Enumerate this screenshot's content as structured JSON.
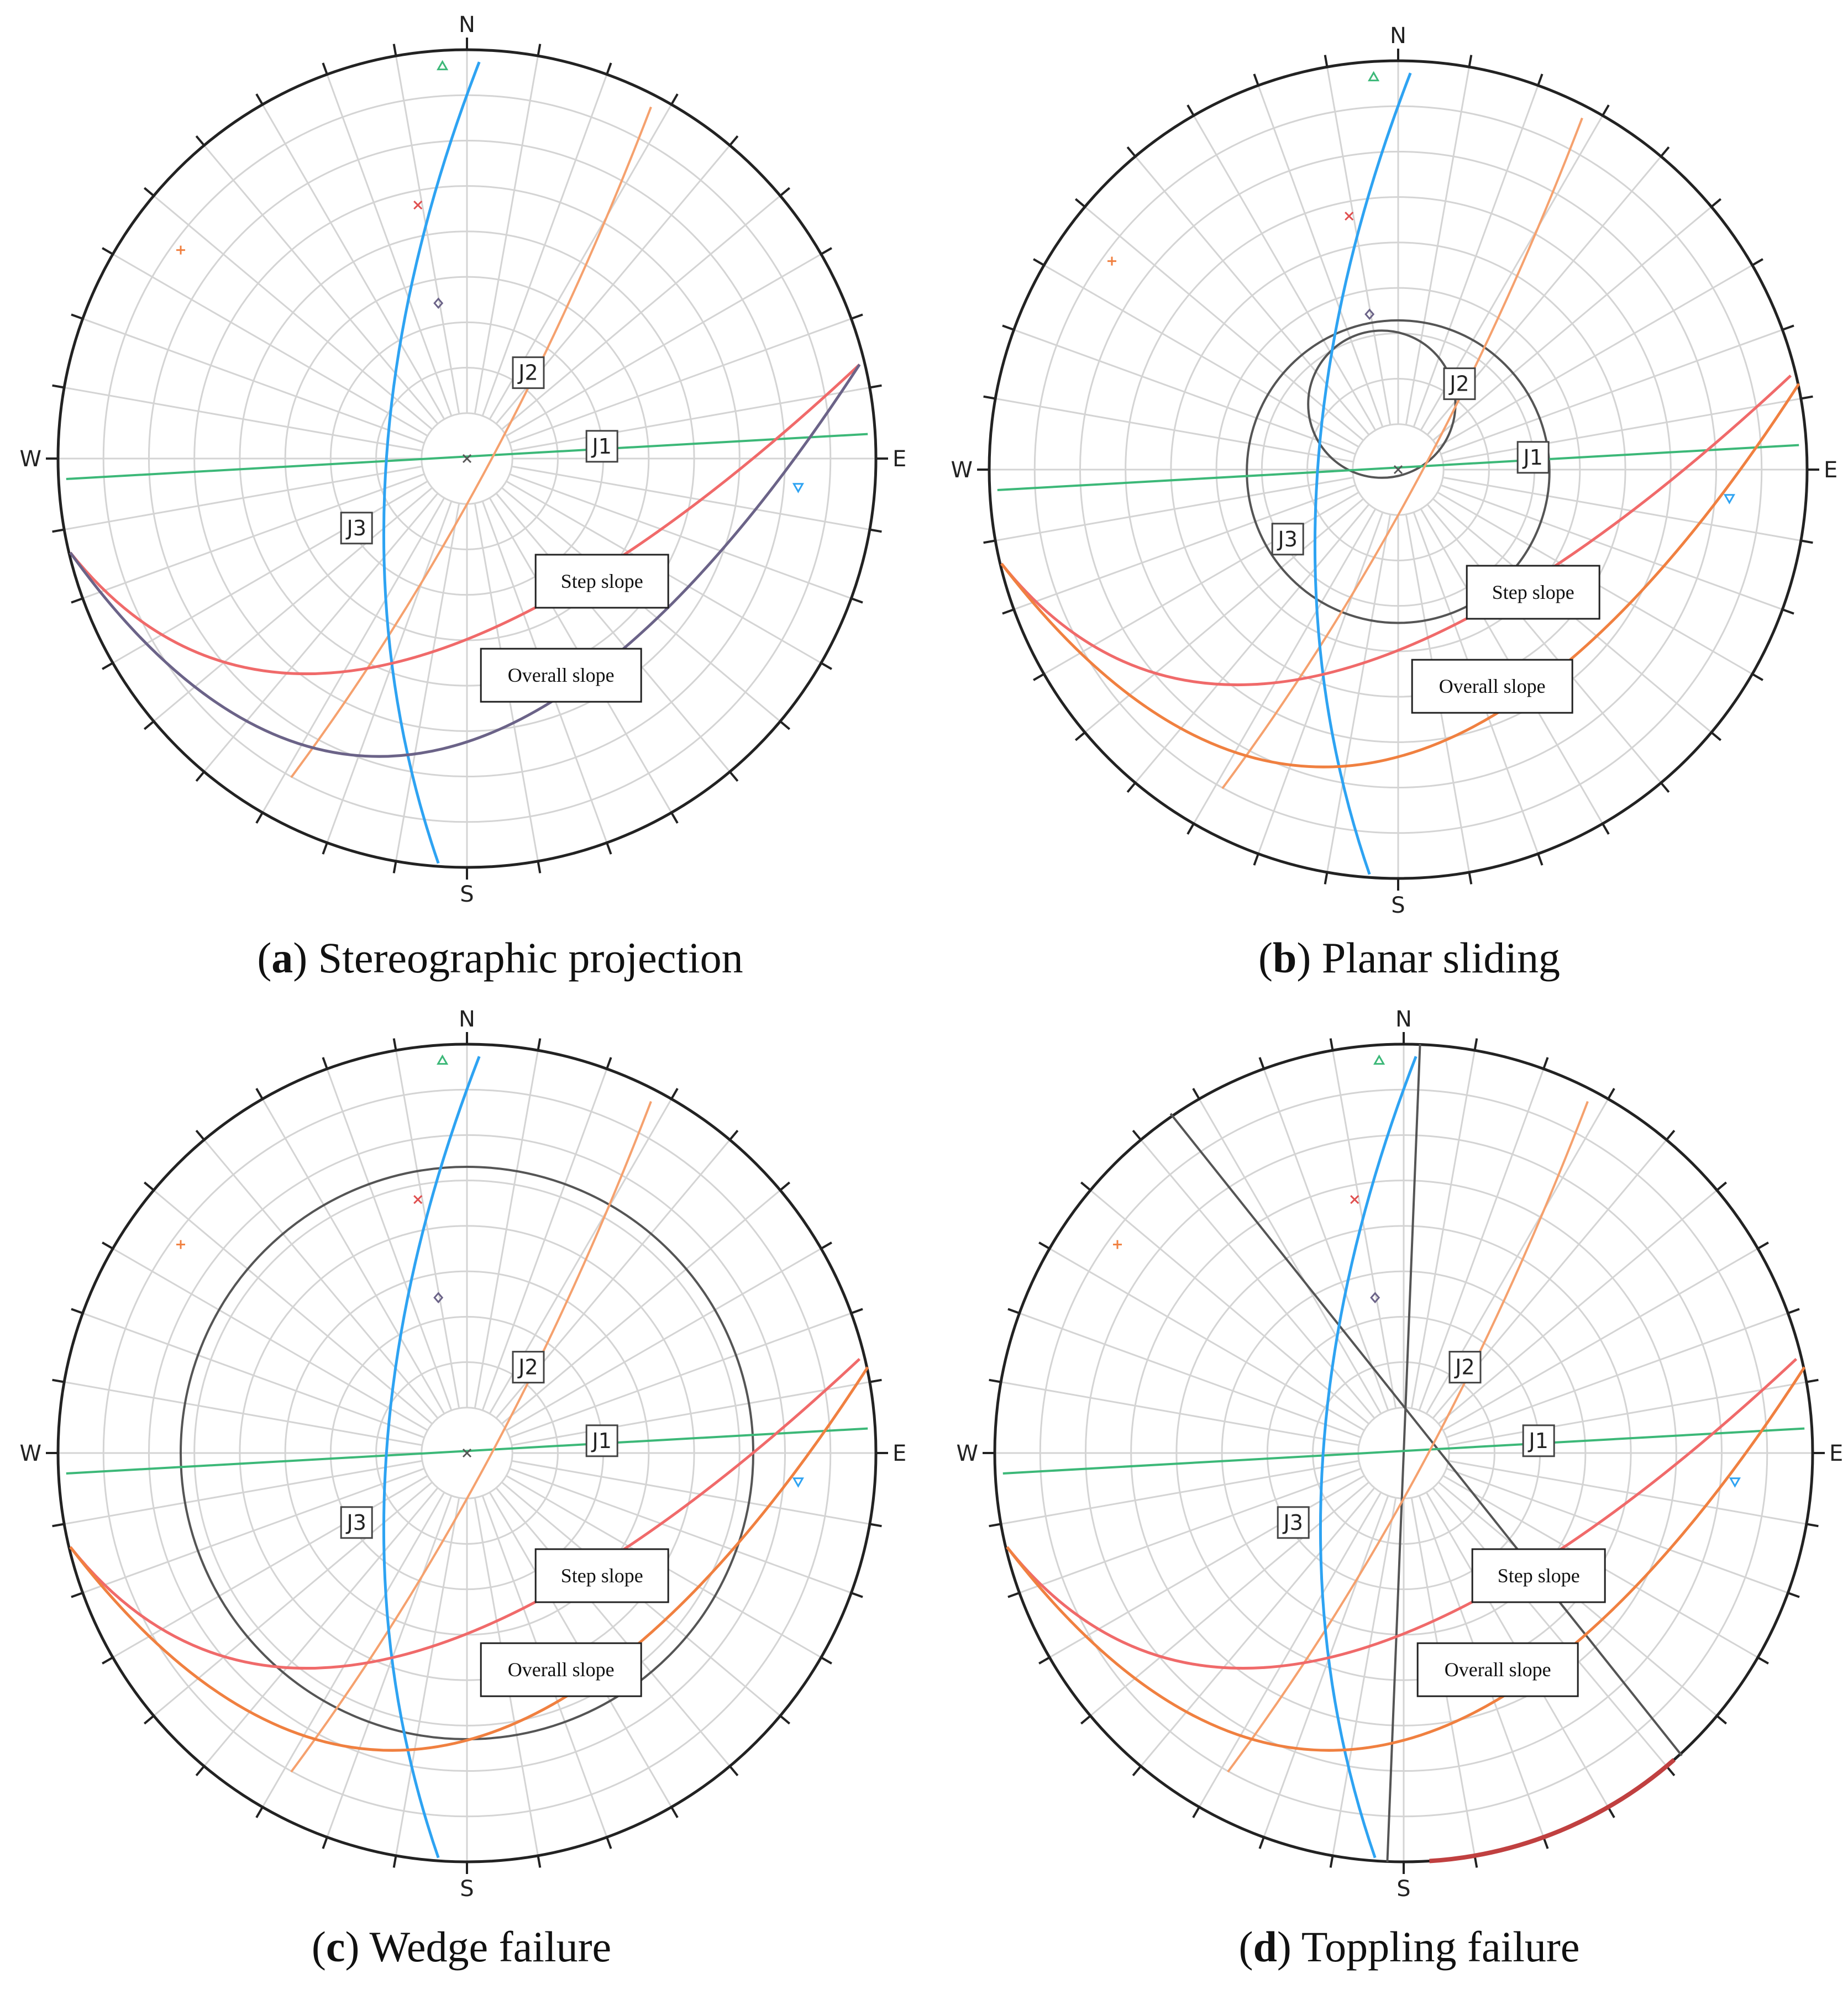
{
  "panels": [
    {
      "id": "a",
      "caption_letter": "a",
      "caption_text": " Stereographic projection",
      "overlay": "none",
      "slope_labels": [
        "Step slope",
        "Overall slope"
      ]
    },
    {
      "id": "b",
      "caption_letter": "b",
      "caption_text": " Planar sliding",
      "overlay": "planar",
      "slope_labels": [
        "Step slope",
        "Overall slope"
      ]
    },
    {
      "id": "c",
      "caption_letter": "c",
      "caption_text": " Wedge failure",
      "overlay": "wedge",
      "slope_labels": [
        "Step slope",
        "Overall slope"
      ]
    },
    {
      "id": "d",
      "caption_letter": "d",
      "caption_text": " Toppling failure",
      "overlay": "toppling",
      "slope_labels": [
        "Step slope",
        "Overall slope"
      ]
    }
  ],
  "cardinals": {
    "n": "N",
    "e": "E",
    "s": "S",
    "w": "W"
  },
  "joint_labels": {
    "j1": "J1",
    "j2": "J2",
    "j3": "J3"
  },
  "colors": {
    "j1": "#3cb878",
    "j2": "#f5a16e",
    "j3": "#2ea3f2",
    "step_slope": "#f06a6a",
    "overall_slope_a": "#6b6388",
    "overall_slope": "#f08040",
    "envelope": "#555555",
    "grid": "#d4d4d4",
    "primitive": "#222222"
  },
  "pole_markers": [
    "triangle",
    "cross",
    "diamond",
    "plus",
    "inverted-triangle",
    "center-cross"
  ]
}
